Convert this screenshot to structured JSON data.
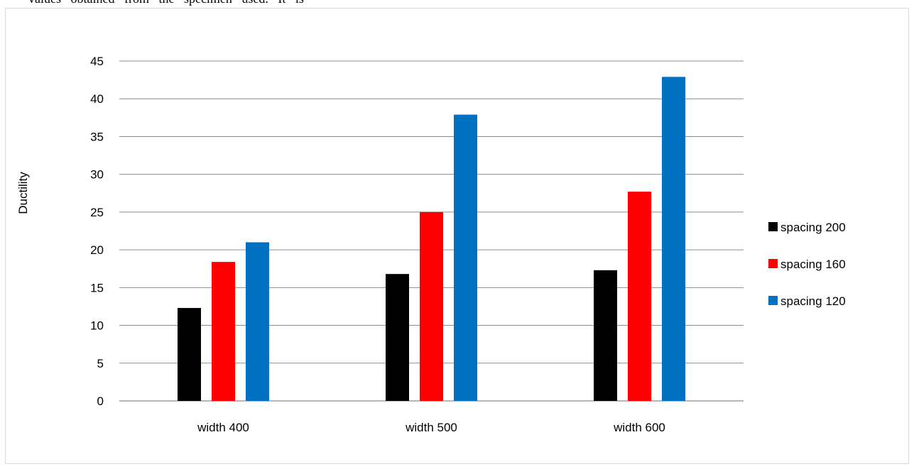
{
  "page_text": "values obtained from the specimen used. It is",
  "colors": {
    "gridline": "#8c8c8c",
    "frame": "#d9d9d9"
  },
  "chart_data": {
    "type": "bar",
    "title": "",
    "xlabel": "",
    "ylabel": "Ductility",
    "ylim": [
      0,
      45
    ],
    "ytick_step": 5,
    "grid": true,
    "legend_position": "right",
    "categories": [
      "width 400",
      "width 500",
      "width 600"
    ],
    "series": [
      {
        "name": "spacing 200",
        "color": "#000000",
        "values": [
          12.3,
          16.8,
          17.3
        ]
      },
      {
        "name": "spacing 160",
        "color": "#ff0000",
        "values": [
          18.4,
          25.0,
          27.7
        ]
      },
      {
        "name": "spacing 120",
        "color": "#0070c0",
        "values": [
          21.0,
          37.9,
          42.9
        ]
      }
    ]
  }
}
